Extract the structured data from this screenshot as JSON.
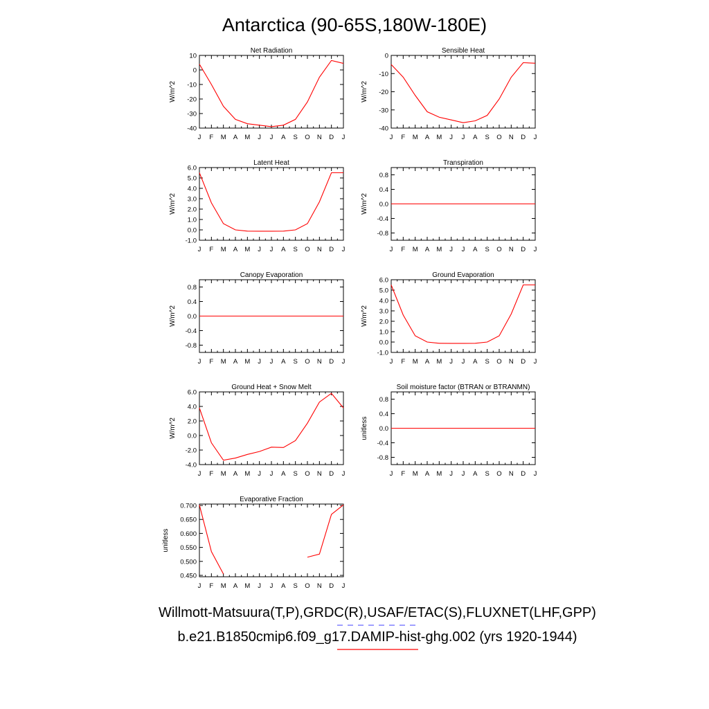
{
  "figure": {
    "title": "Antarctica (90-65S,180W-180E)",
    "legend": {
      "obs_label": "Willmott-Matsuura(T,P),GRDC(R),USAF/ETAC(S),FLUXNET(LHF,GPP)",
      "obs_color": "#6666ff",
      "model_label": "b.e21.B1850cmip6.f09_g17.DAMIP-hist-ghg.002 (yrs 1920-1944)",
      "model_color": "#ff0000"
    },
    "line_color": "#ff0000"
  },
  "chart_data": [
    {
      "type": "line",
      "title": "Net Radiation",
      "ylabel": "W/m^2",
      "xticks": [
        "J",
        "F",
        "M",
        "A",
        "M",
        "J",
        "J",
        "A",
        "S",
        "O",
        "N",
        "D",
        "J"
      ],
      "ylim": [
        -40,
        10
      ],
      "yticks": [
        "10",
        "0",
        "-10",
        "-20",
        "-30",
        "-40"
      ],
      "ytick_values": [
        10,
        0,
        -10,
        -20,
        -30,
        -40
      ],
      "series": [
        {
          "values": [
            4,
            -10,
            -25,
            -34,
            -37,
            -38,
            -39,
            -38,
            -34,
            -22,
            -5,
            6.5,
            4.5
          ]
        }
      ]
    },
    {
      "type": "line",
      "title": "Sensible Heat",
      "ylabel": "W/m^2",
      "xticks": [
        "J",
        "F",
        "M",
        "A",
        "M",
        "J",
        "J",
        "A",
        "S",
        "O",
        "N",
        "D",
        "J"
      ],
      "ylim": [
        -40,
        0
      ],
      "yticks": [
        "0",
        "-10",
        "-20",
        "-30",
        "-40"
      ],
      "ytick_values": [
        0,
        -10,
        -20,
        -30,
        -40
      ],
      "series": [
        {
          "values": [
            -5,
            -12,
            -22,
            -31,
            -34,
            -35.5,
            -37,
            -36,
            -33,
            -24,
            -12,
            -4,
            -4.3
          ]
        }
      ]
    },
    {
      "type": "line",
      "title": "Latent Heat",
      "ylabel": "W/m^2",
      "xticks": [
        "J",
        "F",
        "M",
        "A",
        "M",
        "J",
        "J",
        "A",
        "S",
        "O",
        "N",
        "D",
        "J"
      ],
      "ylim": [
        -1,
        6
      ],
      "yticks": [
        "6.0",
        "5.0",
        "4.0",
        "3.0",
        "2.0",
        "1.0",
        "0.0",
        "-1.0"
      ],
      "ytick_values": [
        6,
        5,
        4,
        3,
        2,
        1,
        0,
        -1
      ],
      "series": [
        {
          "values": [
            5.5,
            2.6,
            0.6,
            0.0,
            -0.12,
            -0.13,
            -0.13,
            -0.12,
            0.0,
            0.6,
            2.7,
            5.5,
            5.5
          ]
        }
      ]
    },
    {
      "type": "line",
      "title": "Transpiration",
      "ylabel": "W/m^2",
      "xticks": [
        "J",
        "F",
        "M",
        "A",
        "M",
        "J",
        "J",
        "A",
        "S",
        "O",
        "N",
        "D",
        "J"
      ],
      "ylim": [
        -1,
        1
      ],
      "yticks": [
        "0.8",
        "0.4",
        "0.0",
        "-0.4",
        "-0.8"
      ],
      "ytick_values": [
        0.8,
        0.4,
        0,
        -0.4,
        -0.8
      ],
      "series": [
        {
          "values": [
            0,
            0,
            0,
            0,
            0,
            0,
            0,
            0,
            0,
            0,
            0,
            0,
            0
          ]
        }
      ]
    },
    {
      "type": "line",
      "title": "Canopy Evaporation",
      "ylabel": "W/m^2",
      "xticks": [
        "J",
        "F",
        "M",
        "A",
        "M",
        "J",
        "J",
        "A",
        "S",
        "O",
        "N",
        "D",
        "J"
      ],
      "ylim": [
        -1,
        1
      ],
      "yticks": [
        "0.8",
        "0.4",
        "0.0",
        "-0.4",
        "-0.8"
      ],
      "ytick_values": [
        0.8,
        0.4,
        0,
        -0.4,
        -0.8
      ],
      "series": [
        {
          "values": [
            0,
            0,
            0,
            0,
            0,
            0,
            0,
            0,
            0,
            0,
            0,
            0,
            0
          ]
        }
      ]
    },
    {
      "type": "line",
      "title": "Ground Evaporation",
      "ylabel": "W/m^2",
      "xticks": [
        "J",
        "F",
        "M",
        "A",
        "M",
        "J",
        "J",
        "A",
        "S",
        "O",
        "N",
        "D",
        "J"
      ],
      "ylim": [
        -1,
        6
      ],
      "yticks": [
        "6.0",
        "5.0",
        "4.0",
        "3.0",
        "2.0",
        "1.0",
        "0.0",
        "-1.0"
      ],
      "ytick_values": [
        6,
        5,
        4,
        3,
        2,
        1,
        0,
        -1
      ],
      "series": [
        {
          "values": [
            5.5,
            2.6,
            0.6,
            0.0,
            -0.12,
            -0.13,
            -0.13,
            -0.12,
            0.0,
            0.6,
            2.7,
            5.5,
            5.5
          ]
        }
      ]
    },
    {
      "type": "line",
      "title": "Ground Heat + Snow Melt",
      "ylabel": "W/m^2",
      "xticks": [
        "J",
        "F",
        "M",
        "A",
        "M",
        "J",
        "J",
        "A",
        "S",
        "O",
        "N",
        "D",
        "J"
      ],
      "ylim": [
        -4,
        6
      ],
      "yticks": [
        "6.0",
        "4.0",
        "2.0",
        "0.0",
        "-2.0",
        "-4.0"
      ],
      "ytick_values": [
        6,
        4,
        2,
        0,
        -2,
        -4
      ],
      "series": [
        {
          "values": [
            3.8,
            -1.0,
            -3.4,
            -3.1,
            -2.6,
            -2.2,
            -1.6,
            -1.65,
            -0.7,
            1.7,
            4.6,
            5.8,
            3.8
          ]
        }
      ]
    },
    {
      "type": "line",
      "title": "Soil moisture factor (BTRAN or BTRANMN)",
      "ylabel": "unitless",
      "xticks": [
        "J",
        "F",
        "M",
        "A",
        "M",
        "J",
        "J",
        "A",
        "S",
        "O",
        "N",
        "D",
        "J"
      ],
      "ylim": [
        -1,
        1
      ],
      "yticks": [
        "0.8",
        "0.4",
        "0.0",
        "-0.4",
        "-0.8"
      ],
      "ytick_values": [
        0.8,
        0.4,
        0,
        -0.4,
        -0.8
      ],
      "series": [
        {
          "values": [
            0,
            0,
            0,
            0,
            0,
            0,
            0,
            0,
            0,
            0,
            0,
            0,
            0
          ]
        }
      ]
    },
    {
      "type": "line",
      "title": "Evaporative Fraction",
      "ylabel": "unitless",
      "xticks": [
        "J",
        "F",
        "M",
        "A",
        "M",
        "J",
        "J",
        "A",
        "S",
        "O",
        "N",
        "D",
        "J"
      ],
      "ylim": [
        0.445,
        0.705
      ],
      "yticks": [
        "0.700",
        "0.650",
        "0.600",
        "0.550",
        "0.500",
        "0.450"
      ],
      "ytick_values": [
        0.7,
        0.65,
        0.6,
        0.55,
        0.5,
        0.45
      ],
      "series": [
        {
          "values": [
            0.702,
            0.535,
            0.455,
            null,
            null,
            null,
            null,
            null,
            null,
            0.515,
            0.526,
            0.668,
            0.702
          ]
        }
      ]
    }
  ]
}
